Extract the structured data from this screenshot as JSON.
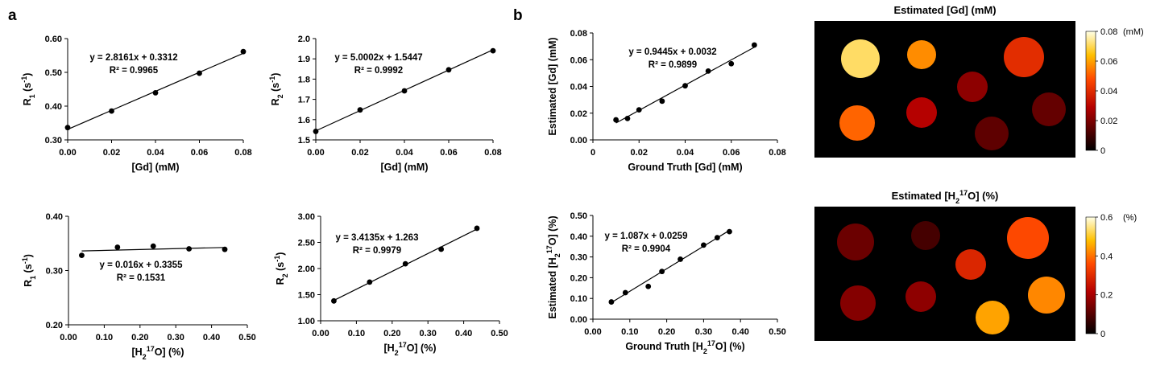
{
  "panel_labels": {
    "a": "a",
    "b": "b"
  },
  "chart_data": [
    {
      "id": "a1",
      "type": "scatter",
      "x": [
        0,
        0.02,
        0.04,
        0.06,
        0.08
      ],
      "y": [
        0.3365,
        0.3855,
        0.4395,
        0.4975,
        0.5615
      ],
      "fit": {
        "slope": 2.8161,
        "intercept": 0.3312
      },
      "equation": "y = 2.8161x + 0.3312",
      "r2": "R² = 0.9965",
      "xlabel": "[Gd] (mM)",
      "ylabel_main": "R",
      "ylabel_sub": "1",
      "ylabel_unit": " (s",
      "ylabel_sup": "-1",
      "ylabel_close": ")",
      "xlim": [
        0,
        0.08
      ],
      "ylim": [
        0.3,
        0.6
      ],
      "xticks": [
        0,
        0.02,
        0.04,
        0.06,
        0.08
      ],
      "xtick_labels": [
        "0.00",
        "0.02",
        "0.04",
        "0.06",
        "0.08"
      ],
      "yticks": [
        0.3,
        0.4,
        0.5,
        0.6
      ],
      "ytick_labels": [
        "0.30",
        "0.40",
        "0.50",
        "0.60"
      ]
    },
    {
      "id": "a2",
      "type": "scatter",
      "x": [
        0,
        0.02,
        0.04,
        0.06,
        0.08
      ],
      "y": [
        1.542,
        1.648,
        1.742,
        1.846,
        1.94
      ],
      "fit": {
        "slope": 5.0002,
        "intercept": 1.5447
      },
      "equation": "y = 5.0002x + 1.5447",
      "r2": "R² = 0.9992",
      "xlabel": "[Gd] (mM)",
      "ylabel_main": "R",
      "ylabel_sub": "2",
      "ylabel_unit": " (s",
      "ylabel_sup": "-1",
      "ylabel_close": ")",
      "xlim": [
        0,
        0.08
      ],
      "ylim": [
        1.5,
        2.0
      ],
      "xticks": [
        0,
        0.02,
        0.04,
        0.06,
        0.08
      ],
      "xtick_labels": [
        "0.00",
        "0.02",
        "0.04",
        "0.06",
        "0.08"
      ],
      "yticks": [
        1.5,
        1.6,
        1.7,
        1.8,
        1.9,
        2.0
      ],
      "ytick_labels": [
        "1.5",
        "1.6",
        "1.7",
        "1.8",
        "1.9",
        "2.0"
      ]
    },
    {
      "id": "a3",
      "type": "scatter",
      "x": [
        0.037,
        0.137,
        0.237,
        0.337,
        0.437
      ],
      "y": [
        0.328,
        0.343,
        0.345,
        0.34,
        0.339
      ],
      "fit": {
        "slope": 0.016,
        "intercept": 0.3355
      },
      "equation": "y = 0.016x + 0.3355",
      "r2": "R² = 0.1531",
      "xlabel_pre": "[H",
      "xlabel_sub": "2",
      "xlabel_sup": "17",
      "xlabel_post": "O] (%)",
      "ylabel_main": "R",
      "ylabel_sub": "1",
      "ylabel_unit": " (s",
      "ylabel_sup": "-1",
      "ylabel_close": ")",
      "xlim": [
        0,
        0.5
      ],
      "ylim": [
        0.2,
        0.4
      ],
      "xticks": [
        0,
        0.1,
        0.2,
        0.3,
        0.4,
        0.5
      ],
      "xtick_labels": [
        "0.00",
        "0.10",
        "0.20",
        "0.30",
        "0.40",
        "0.50"
      ],
      "yticks": [
        0.2,
        0.3,
        0.4
      ],
      "ytick_labels": [
        "0.20",
        "0.30",
        "0.40"
      ]
    },
    {
      "id": "a4",
      "type": "scatter",
      "x": [
        0.037,
        0.137,
        0.237,
        0.337,
        0.437
      ],
      "y": [
        1.38,
        1.74,
        2.09,
        2.37,
        2.77
      ],
      "fit": {
        "slope": 3.4135,
        "intercept": 1.263
      },
      "equation": "y = 3.4135x + 1.263",
      "r2": "R² = 0.9979",
      "xlabel_pre": "[H",
      "xlabel_sub": "2",
      "xlabel_sup": "17",
      "xlabel_post": "O] (%)",
      "ylabel_main": "R",
      "ylabel_sub": "2",
      "ylabel_unit": " (s",
      "ylabel_sup": "-1",
      "ylabel_close": ")",
      "xlim": [
        0,
        0.5
      ],
      "ylim": [
        1.0,
        3.0
      ],
      "xticks": [
        0,
        0.1,
        0.2,
        0.3,
        0.4,
        0.5
      ],
      "xtick_labels": [
        "0.00",
        "0.10",
        "0.20",
        "0.30",
        "0.40",
        "0.50"
      ],
      "yticks": [
        1.0,
        1.5,
        2.0,
        2.5,
        3.0
      ],
      "ytick_labels": [
        "1.00",
        "1.50",
        "2.00",
        "2.50",
        "3.00"
      ]
    },
    {
      "id": "b1",
      "type": "scatter",
      "x": [
        0.01,
        0.015,
        0.02,
        0.03,
        0.04,
        0.05,
        0.06,
        0.07
      ],
      "y": [
        0.015,
        0.016,
        0.0225,
        0.029,
        0.0405,
        0.0515,
        0.057,
        0.071
      ],
      "fit": {
        "slope": 0.9445,
        "intercept": 0.0032,
        "x_range": [
          0.01,
          0.07
        ]
      },
      "equation": "y = 0.9445x + 0.0032",
      "r2": "R² = 0.9899",
      "xlabel": "Ground Truth [Gd] (mM)",
      "ylabel": "Estimated [Gd] (mM)",
      "xlim": [
        0,
        0.08
      ],
      "ylim": [
        0,
        0.08
      ],
      "xticks": [
        0,
        0.02,
        0.04,
        0.06,
        0.08
      ],
      "xtick_labels": [
        "0",
        "0.02",
        "0.04",
        "0.06",
        "0.08"
      ],
      "yticks": [
        0,
        0.02,
        0.04,
        0.06,
        0.08
      ],
      "ytick_labels": [
        "0.00",
        "0.02",
        "0.04",
        "0.06",
        "0.08"
      ]
    },
    {
      "id": "b2",
      "type": "scatter",
      "x": [
        0.05,
        0.088,
        0.15,
        0.187,
        0.237,
        0.3,
        0.337,
        0.37
      ],
      "y": [
        0.083,
        0.128,
        0.158,
        0.23,
        0.289,
        0.357,
        0.393,
        0.422
      ],
      "fit": {
        "slope": 1.087,
        "intercept": 0.0259,
        "x_range": [
          0.05,
          0.37
        ]
      },
      "equation": "y = 1.087x + 0.0259",
      "r2": "R² = 0.9904",
      "xlabel_pre": "Ground Truth [H",
      "xlabel_sub": "2",
      "xlabel_sup": "17",
      "xlabel_post": "O] (%)",
      "ylabel_pre": "Estimated [H",
      "ylabel_sub": "2",
      "ylabel_sup": "17",
      "ylabel_post": "O] (%)",
      "xlim": [
        0,
        0.5
      ],
      "ylim": [
        0,
        0.5
      ],
      "xticks": [
        0,
        0.1,
        0.2,
        0.3,
        0.4,
        0.5
      ],
      "xtick_labels": [
        "0.00",
        "0.10",
        "0.20",
        "0.30",
        "0.40",
        "0.50"
      ],
      "yticks": [
        0,
        0.1,
        0.2,
        0.3,
        0.4,
        0.5
      ],
      "ytick_labels": [
        "0.00",
        "0.10",
        "0.20",
        "0.30",
        "0.40",
        "0.50"
      ]
    },
    {
      "id": "map1",
      "type": "heatmap",
      "title": "Estimated [Gd] (mM)",
      "colorbar_ticks": [
        "0",
        "0.02",
        "0.04",
        "0.06",
        "0.08"
      ],
      "colorbar_unit": "(mM)",
      "colorbar_range": [
        0,
        0.08
      ],
      "regions": [
        {
          "value": 0.071,
          "label": "top-left"
        },
        {
          "value": 0.057,
          "label": "top-middle-left"
        },
        {
          "value": 0.0405,
          "label": "top-right"
        },
        {
          "value": 0.0225,
          "label": "center"
        },
        {
          "value": 0.0515,
          "label": "bottom-left"
        },
        {
          "value": 0.029,
          "label": "middle-left"
        },
        {
          "value": 0.016,
          "label": "right"
        },
        {
          "value": 0.015,
          "label": "bottom-center"
        }
      ]
    },
    {
      "id": "map2",
      "type": "heatmap",
      "title_pre": "Estimated [H",
      "title_sub": "2",
      "title_sup": "17",
      "title_post": "O] (%)",
      "colorbar_ticks": [
        "0",
        "0.2",
        "0.4",
        "0.6"
      ],
      "colorbar_unit": "(%)",
      "colorbar_range": [
        0,
        0.6
      ],
      "regions": [
        {
          "value": 0.128,
          "label": "top-left"
        },
        {
          "value": 0.083,
          "label": "top-middle-left"
        },
        {
          "value": 0.357,
          "label": "top-right"
        },
        {
          "value": 0.289,
          "label": "center"
        },
        {
          "value": 0.158,
          "label": "bottom-left"
        },
        {
          "value": 0.17,
          "label": "middle-left"
        },
        {
          "value": 0.422,
          "label": "right"
        },
        {
          "value": 0.45,
          "label": "bottom-center"
        }
      ]
    }
  ]
}
